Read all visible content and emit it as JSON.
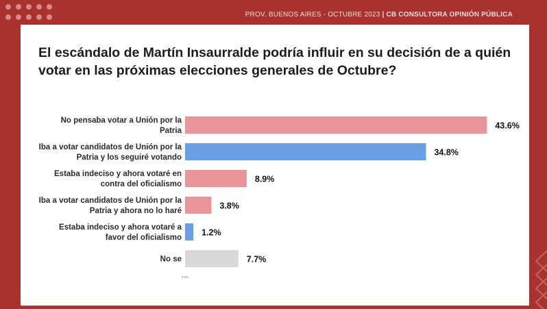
{
  "header": {
    "left": "PROV. BUENOS AIRES - OCTUBRE  2023",
    "separator": " | ",
    "brand": "CB CONSULTORA OPINIÓN PÚBLICA"
  },
  "colors": {
    "background": "#a8332e",
    "panel": "#ffffff",
    "pink": "#e8959a",
    "blue": "#6a9fe6",
    "gray": "#d9d9d9"
  },
  "chart_data": {
    "type": "bar",
    "orientation": "horizontal",
    "title": "El escándalo de Martín Insaurralde podría influir en su decisión de a quién votar en las próximas elecciones generales de Octubre?",
    "categories": [
      [
        "No pensaba votar a Unión por la",
        "Patria"
      ],
      [
        "Iba a votar candidatos de Unión por la",
        "Patria y los seguiré votando"
      ],
      [
        "Estaba indeciso y ahora votaré en",
        "contra del oficialismo"
      ],
      [
        "Iba a votar candidatos de Unión por la",
        "Patria y ahora no lo haré"
      ],
      [
        "Estaba indeciso y ahora votaré a",
        "favor del oficialismo"
      ],
      [
        "No se"
      ]
    ],
    "values": [
      43.6,
      34.8,
      8.9,
      3.8,
      1.2,
      7.7
    ],
    "value_labels": [
      "43.6%",
      "34.8%",
      "8.9%",
      "3.8%",
      "1.2%",
      "7.7%"
    ],
    "bar_colors": [
      "#e8959a",
      "#6a9fe6",
      "#e8959a",
      "#e8959a",
      "#6a9fe6",
      "#d9d9d9"
    ],
    "xaxis_tick_label": "0.0%",
    "xlim": [
      0,
      50
    ],
    "grid": false,
    "legend": "none"
  }
}
